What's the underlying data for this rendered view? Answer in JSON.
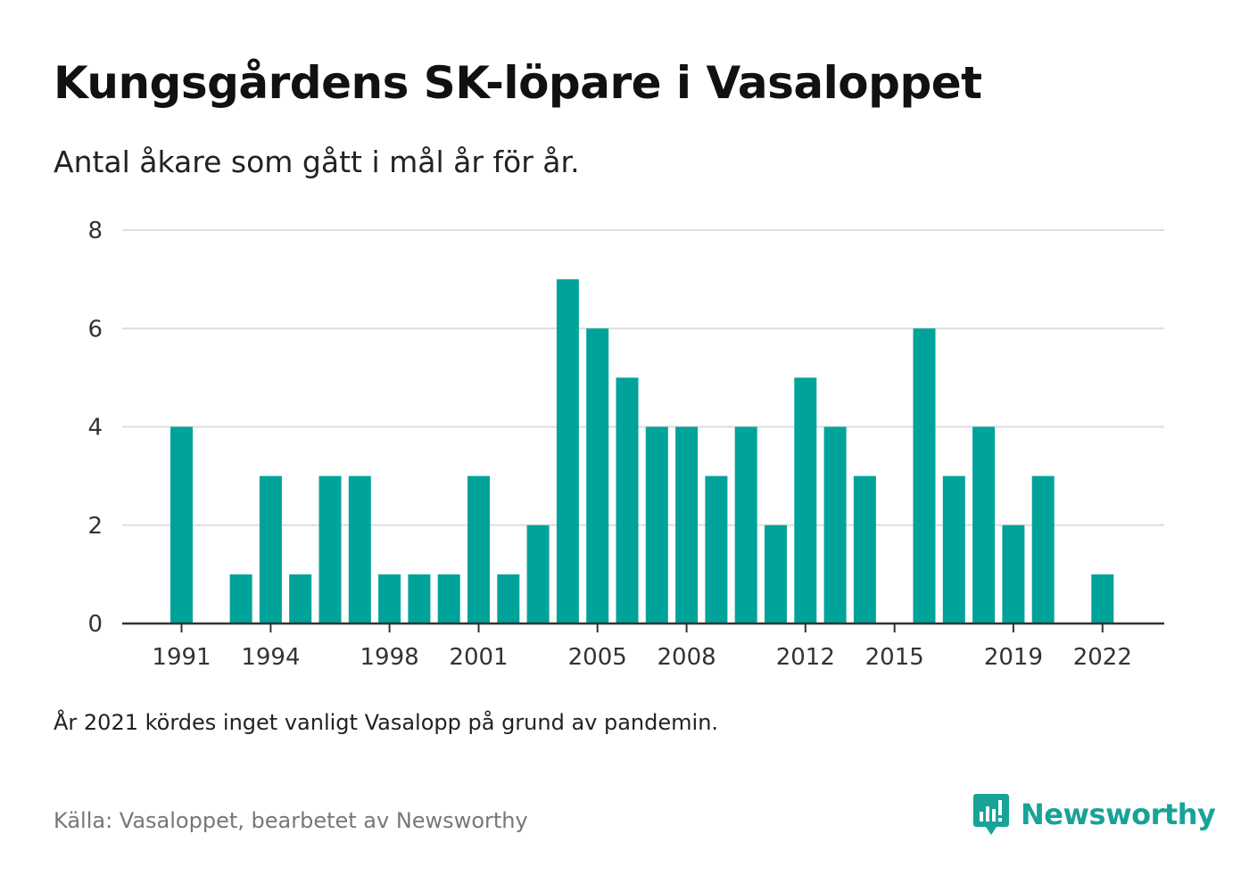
{
  "title": "Kungsgårdens SK-löpare i Vasaloppet",
  "subtitle": "Antal åkare som gått i mål år för år.",
  "note": "År 2021 kördes inget vanligt Vasalopp på grund av pandemin.",
  "source": "Källa: Vasaloppet, bearbetet av Newsworthy",
  "brand": {
    "name": "Newsworthy",
    "icon": "newsworthy-logo-icon"
  },
  "colors": {
    "bar": "#00a39a",
    "grid": "#dddddd",
    "axis": "#333333",
    "brand": "#17a398"
  },
  "chart_data": {
    "type": "bar",
    "x": [
      1991,
      1992,
      1993,
      1994,
      1995,
      1996,
      1997,
      1998,
      1999,
      2000,
      2001,
      2002,
      2003,
      2004,
      2005,
      2006,
      2007,
      2008,
      2009,
      2010,
      2011,
      2012,
      2013,
      2014,
      2015,
      2016,
      2017,
      2018,
      2019,
      2020,
      2021,
      2022
    ],
    "values": [
      4,
      0,
      1,
      3,
      1,
      3,
      3,
      1,
      1,
      1,
      3,
      1,
      2,
      7,
      6,
      5,
      4,
      4,
      3,
      4,
      2,
      5,
      4,
      3,
      0,
      6,
      3,
      4,
      2,
      3,
      0,
      1
    ],
    "x_tick_labels": [
      "1991",
      "1994",
      "1998",
      "2001",
      "2005",
      "2008",
      "2012",
      "2015",
      "2019",
      "2022"
    ],
    "y_ticks": [
      "0",
      "2",
      "4",
      "6",
      "8"
    ],
    "ylim": [
      0,
      8
    ],
    "grid": true,
    "legend": "none"
  }
}
